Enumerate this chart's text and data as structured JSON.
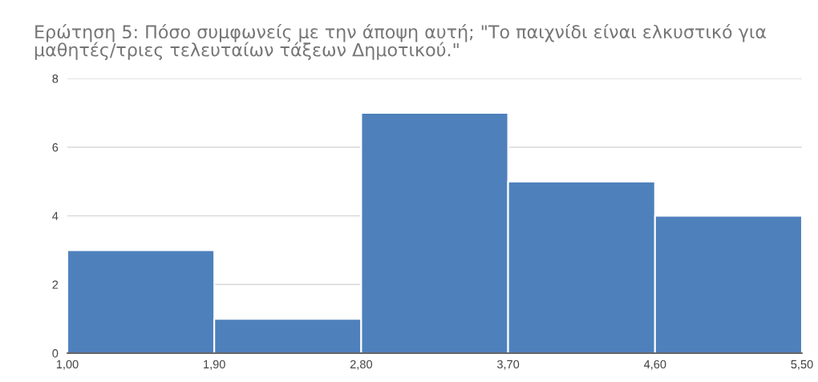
{
  "chart_data": {
    "type": "histogram",
    "title": "Ερώτηση 5: Πόσο συμφωνείς με την άποψη αυτή; \"Το παιχνίδι είναι ελκυστικό για μαθητές/τριες τελευταίων τάξεων Δημοτικού.\"",
    "bins": [
      1.0,
      1.9,
      2.8,
      3.7,
      4.6,
      5.5
    ],
    "values": [
      3,
      1,
      7,
      5,
      4
    ],
    "color": "#4e80bc",
    "xlim": [
      1.0,
      5.5
    ],
    "xticks": [
      {
        "value": 1.0,
        "label": "1,00"
      },
      {
        "value": 1.9,
        "label": "1,90"
      },
      {
        "value": 2.8,
        "label": "2,80"
      },
      {
        "value": 3.7,
        "label": "3,70"
      },
      {
        "value": 4.6,
        "label": "4,60"
      },
      {
        "value": 5.5,
        "label": "5,50"
      }
    ],
    "ylim": [
      0,
      8
    ],
    "yticks": [
      0,
      2,
      4,
      6,
      8
    ],
    "grid": "y"
  }
}
